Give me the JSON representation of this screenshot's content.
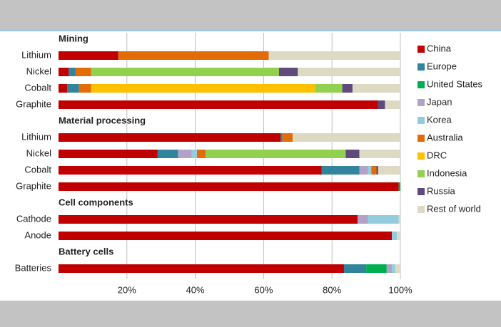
{
  "chart_data": {
    "type": "stacked-bar-horizontal",
    "groups": [
      {
        "name": "Mining",
        "categories": [
          "Lithium",
          "Nickel",
          "Cobalt",
          "Graphite"
        ]
      },
      {
        "name": "Material processing",
        "categories": [
          "Lithium",
          "Nickel",
          "Cobalt",
          "Graphite"
        ]
      },
      {
        "name": "Cell components",
        "categories": [
          "Cathode",
          "Anode"
        ]
      },
      {
        "name": "Battery cells",
        "categories": [
          "Batteries"
        ]
      }
    ],
    "series": [
      {
        "name": "China",
        "color": "#c00000",
        "values": [
          17.5,
          3,
          2.5,
          93.5,
          65,
          29,
          77,
          99.5,
          87.5,
          97.5,
          83.5
        ]
      },
      {
        "name": "Europe",
        "color": "#31849b",
        "values": [
          null,
          2,
          3.5,
          null,
          0.5,
          6,
          11,
          null,
          null,
          null,
          6.5
        ]
      },
      {
        "name": "United States",
        "color": "#00b050",
        "values": [
          null,
          null,
          null,
          null,
          null,
          null,
          null,
          0.5,
          null,
          null,
          6
        ]
      },
      {
        "name": "Japan",
        "color": "#b3a2c7",
        "values": [
          null,
          null,
          null,
          null,
          null,
          4,
          2.5,
          null,
          3,
          null,
          1.5
        ]
      },
      {
        "name": "Korea",
        "color": "#93cddd",
        "values": [
          null,
          null,
          null,
          null,
          null,
          1.5,
          1,
          null,
          9,
          1.5,
          1
        ]
      },
      {
        "name": "Australia",
        "color": "#e36c09",
        "values": [
          44,
          4.5,
          3.5,
          null,
          3,
          2.5,
          1.5,
          null,
          null,
          null,
          null
        ]
      },
      {
        "name": "DRC",
        "color": "#ffc000",
        "values": [
          null,
          null,
          65.5,
          null,
          null,
          null,
          null,
          null,
          null,
          null,
          null
        ]
      },
      {
        "name": "Indonesia",
        "color": "#92d050",
        "values": [
          null,
          55,
          8,
          null,
          null,
          41,
          null,
          null,
          null,
          null,
          null
        ]
      },
      {
        "name": "Russia",
        "color": "#604a7b",
        "values": [
          null,
          5.5,
          3,
          2,
          null,
          4,
          0.5,
          null,
          null,
          null,
          null
        ]
      },
      {
        "name": "Rest of world",
        "color": "#ddd9c3",
        "values": [
          38.5,
          30,
          14,
          4.5,
          31.5,
          12,
          6.5,
          null,
          0.5,
          1,
          1.5
        ]
      }
    ],
    "xlim": [
      0,
      100
    ],
    "xticks": [
      {
        "value": 20,
        "label": "20%"
      },
      {
        "value": 40,
        "label": "40%"
      },
      {
        "value": 60,
        "label": "60%"
      },
      {
        "value": 80,
        "label": "80%"
      },
      {
        "value": 100,
        "label": "100%"
      }
    ],
    "grid": true
  }
}
